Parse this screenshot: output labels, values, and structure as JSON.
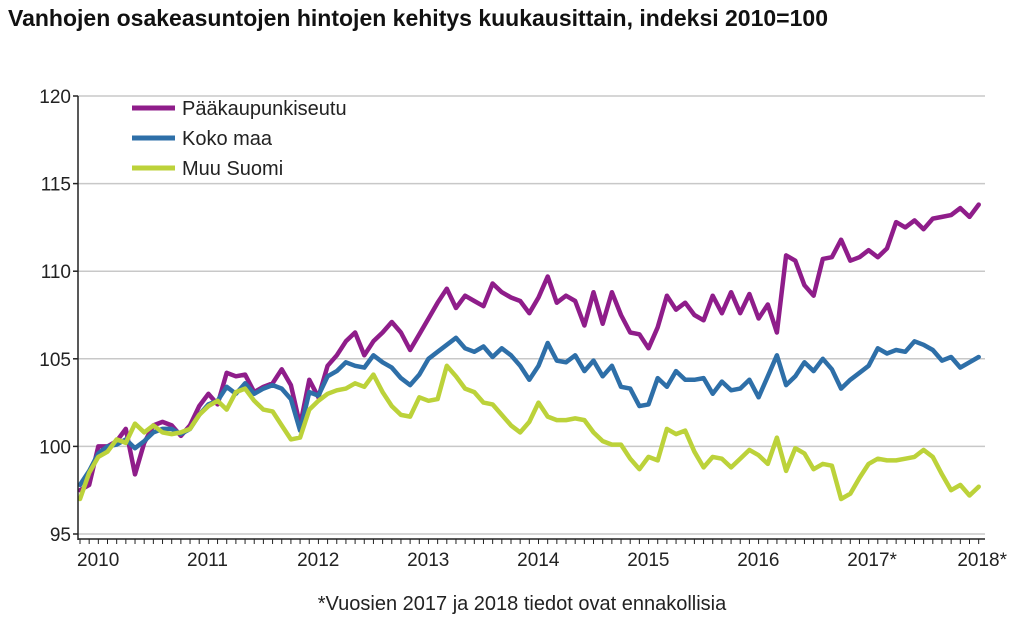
{
  "chart_data": {
    "type": "line",
    "title": "Vanhojen osakeasuntojen hintojen kehitys kuukausittain, indeksi 2010=100",
    "xlabel": "",
    "ylabel": "",
    "footnote": "*Vuosien 2017 ja 2018 tiedot ovat ennakollisia",
    "ylim": [
      95,
      120
    ],
    "yticks": [
      "95",
      "100",
      "105",
      "110",
      "115",
      "120"
    ],
    "ytick_values": [
      95,
      100,
      105,
      110,
      115,
      120
    ],
    "xticks": [
      "2010",
      "2011",
      "2012",
      "2013",
      "2014",
      "2015",
      "2016",
      "2017*",
      "2018*"
    ],
    "x_start": "2010-01",
    "x_frequency": "monthly",
    "x_months_total": 99,
    "grid": true,
    "legend_position": "top-left",
    "series": [
      {
        "name": "Pääkaupunkiseutu",
        "color": "#8f1d8a",
        "values": [
          97.5,
          97.8,
          100.0,
          100.0,
          100.3,
          101.0,
          98.4,
          100.2,
          101.2,
          101.4,
          101.2,
          100.6,
          101.2,
          102.3,
          103.0,
          102.4,
          104.2,
          104.0,
          104.1,
          103.1,
          103.4,
          103.6,
          104.4,
          103.5,
          101.2,
          103.8,
          102.8,
          104.6,
          105.2,
          106.0,
          106.5,
          105.2,
          106.0,
          106.5,
          107.1,
          106.5,
          105.5,
          106.4,
          107.3,
          108.2,
          109.0,
          107.9,
          108.6,
          108.3,
          108.0,
          109.3,
          108.8,
          108.5,
          108.3,
          107.6,
          108.5,
          109.7,
          108.2,
          108.6,
          108.3,
          106.9,
          108.8,
          107.0,
          108.8,
          107.5,
          106.5,
          106.4,
          105.6,
          106.8,
          108.6,
          107.8,
          108.2,
          107.5,
          107.2,
          108.6,
          107.6,
          108.8,
          107.6,
          108.7,
          107.3,
          108.1,
          106.5,
          110.9,
          110.6,
          109.2,
          108.6,
          110.7,
          110.8,
          111.8,
          110.6,
          110.8,
          111.2,
          110.8,
          111.3,
          112.8,
          112.5,
          112.9,
          112.4,
          113.0,
          113.1,
          113.2,
          113.6,
          113.1,
          113.8
        ]
      },
      {
        "name": "Koko maa",
        "color": "#2e6fa8",
        "values": [
          97.8,
          98.6,
          99.6,
          100.0,
          100.1,
          100.4,
          99.9,
          100.3,
          100.8,
          101.0,
          101.0,
          100.7,
          101.0,
          101.8,
          102.4,
          102.6,
          103.4,
          103.0,
          103.6,
          103.0,
          103.3,
          103.5,
          103.3,
          102.7,
          100.9,
          103.1,
          102.9,
          104.0,
          104.3,
          104.8,
          104.6,
          104.5,
          105.2,
          104.8,
          104.5,
          103.9,
          103.5,
          104.1,
          105.0,
          105.4,
          105.8,
          106.2,
          105.6,
          105.4,
          105.7,
          105.1,
          105.6,
          105.2,
          104.6,
          103.8,
          104.6,
          105.9,
          104.9,
          104.8,
          105.2,
          104.3,
          104.9,
          104.0,
          104.6,
          103.4,
          103.3,
          102.3,
          102.4,
          103.9,
          103.4,
          104.3,
          103.8,
          103.8,
          103.9,
          103.0,
          103.7,
          103.2,
          103.3,
          103.8,
          102.8,
          104.0,
          105.2,
          103.5,
          104.0,
          104.8,
          104.3,
          105.0,
          104.4,
          103.3,
          103.8,
          104.2,
          104.6,
          105.6,
          105.3,
          105.5,
          105.4,
          106.0,
          105.8,
          105.5,
          104.9,
          105.1,
          104.5,
          104.8,
          105.1
        ]
      },
      {
        "name": "Muu Suomi",
        "color": "#bcd23a",
        "values": [
          97.0,
          98.5,
          99.4,
          99.7,
          100.4,
          100.2,
          101.3,
          100.8,
          101.2,
          100.8,
          100.7,
          100.8,
          101.0,
          101.8,
          102.3,
          102.6,
          102.1,
          103.1,
          103.3,
          102.6,
          102.1,
          102.0,
          101.2,
          100.4,
          100.5,
          102.1,
          102.6,
          103.0,
          103.2,
          103.3,
          103.6,
          103.4,
          104.1,
          103.1,
          102.3,
          101.8,
          101.7,
          102.8,
          102.6,
          102.7,
          104.6,
          104.0,
          103.3,
          103.1,
          102.5,
          102.4,
          101.8,
          101.2,
          100.8,
          101.4,
          102.5,
          101.7,
          101.5,
          101.5,
          101.6,
          101.5,
          100.8,
          100.3,
          100.1,
          100.1,
          99.3,
          98.7,
          99.4,
          99.2,
          101.0,
          100.7,
          100.9,
          99.7,
          98.8,
          99.4,
          99.3,
          98.8,
          99.3,
          99.8,
          99.5,
          99.0,
          100.5,
          98.6,
          99.9,
          99.6,
          98.7,
          99.0,
          98.9,
          97.0,
          97.3,
          98.2,
          99.0,
          99.3,
          99.2,
          99.2,
          99.3,
          99.4,
          99.8,
          99.4,
          98.4,
          97.5,
          97.8,
          97.2,
          97.7
        ]
      }
    ]
  }
}
